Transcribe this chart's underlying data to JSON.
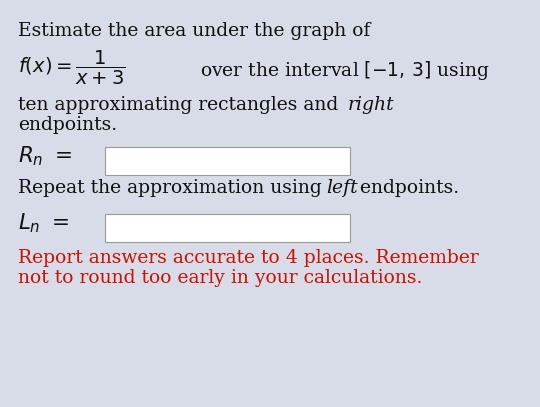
{
  "bg_color": "#d8dce8",
  "text_color_black": "#111111",
  "text_color_red": "#cc1100",
  "box_color": "#ffffff",
  "box_border": "#999999",
  "figsize": [
    5.4,
    4.07
  ],
  "dpi": 100,
  "line1": "Estimate the area under the graph of",
  "red_line1": "Report answers accurate to 4 places. Remember",
  "red_line2": "not to round too early in your calculations."
}
